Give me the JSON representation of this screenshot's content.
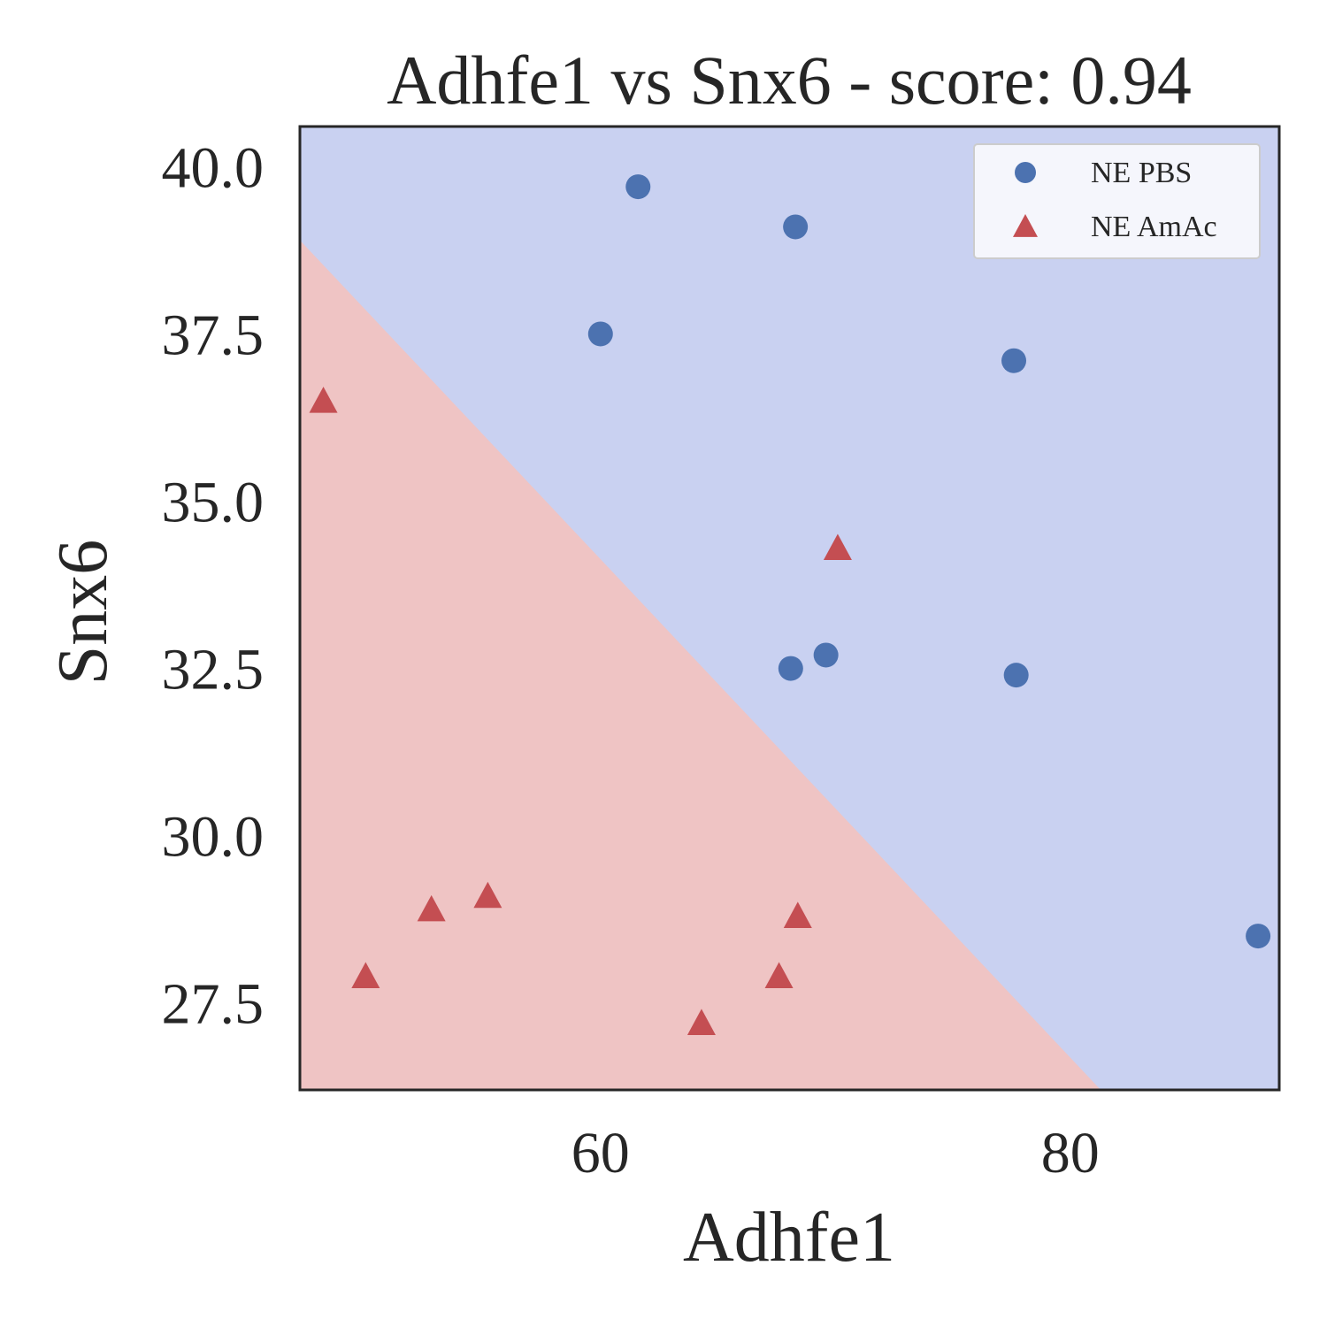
{
  "chart_data": {
    "type": "scatter",
    "title": "Adhfe1 vs Snx6 - score: 0.94",
    "xlabel": "Adhfe1",
    "ylabel": "Snx6",
    "xlim": [
      47.2,
      88.9
    ],
    "ylim": [
      26.2,
      40.6
    ],
    "xticks": [
      60,
      80
    ],
    "xtick_labels": [
      "60",
      "80"
    ],
    "yticks": [
      27.5,
      30.0,
      32.5,
      35.0,
      37.5,
      40.0
    ],
    "ytick_labels": [
      "27.5",
      "30.0",
      "32.5",
      "35.0",
      "37.5",
      "40.0"
    ],
    "grid": false,
    "legend_position": "top-right",
    "decision_boundary": {
      "points": [
        [
          47.2,
          38.9
        ],
        [
          81.3,
          26.2
        ]
      ],
      "regions": [
        {
          "label": "NE PBS",
          "side": "upper-right",
          "color": "#c9d1f1"
        },
        {
          "label": "NE AmAc",
          "side": "lower-left",
          "color": "#efc4c4"
        }
      ]
    },
    "series": [
      {
        "name": "NE PBS",
        "marker": "circle",
        "color": "#4c72b0",
        "points": [
          [
            61.6,
            39.7
          ],
          [
            68.3,
            39.1
          ],
          [
            60.0,
            37.5
          ],
          [
            77.6,
            37.1
          ],
          [
            68.1,
            32.5
          ],
          [
            69.6,
            32.7
          ],
          [
            77.7,
            32.4
          ],
          [
            88.0,
            28.5
          ]
        ]
      },
      {
        "name": "NE AmAc",
        "marker": "triangle",
        "color": "#c44e52",
        "points": [
          [
            48.2,
            36.5
          ],
          [
            70.1,
            34.3
          ],
          [
            52.8,
            28.9
          ],
          [
            55.2,
            29.1
          ],
          [
            50.0,
            27.9
          ],
          [
            68.4,
            28.8
          ],
          [
            67.6,
            27.9
          ],
          [
            64.3,
            27.2
          ]
        ]
      }
    ]
  }
}
